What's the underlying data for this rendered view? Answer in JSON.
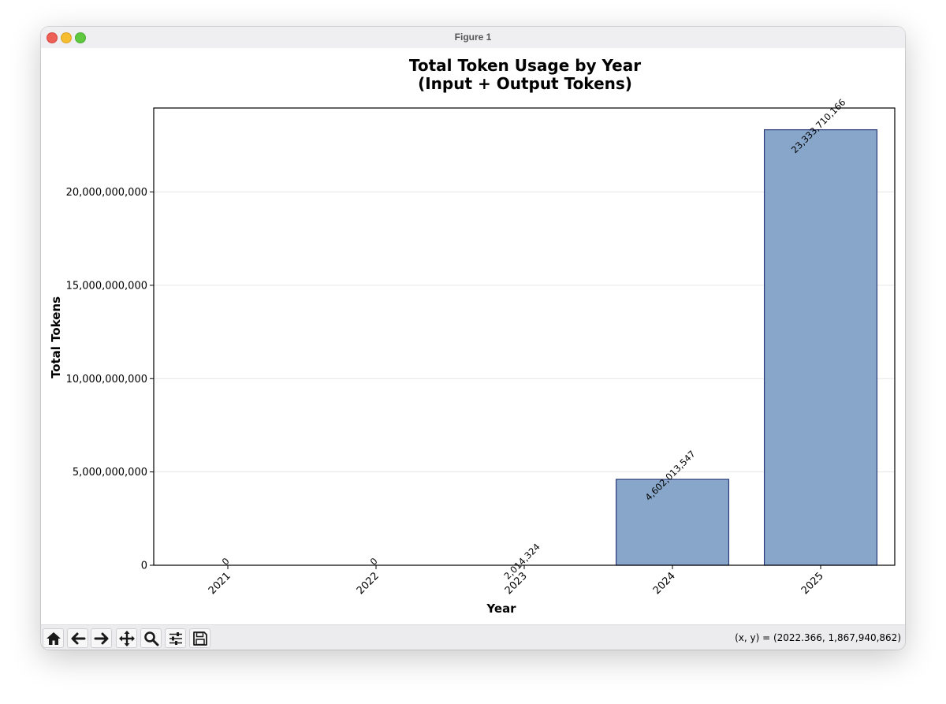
{
  "window": {
    "title": "Figure 1"
  },
  "toolbar": {
    "buttons": [
      {
        "name": "home-button",
        "icon": "home-icon"
      },
      {
        "name": "back-button",
        "icon": "arrow-left-icon"
      },
      {
        "name": "forward-button",
        "icon": "arrow-right-icon"
      },
      {
        "name": "pan-button",
        "icon": "move-icon"
      },
      {
        "name": "zoom-button",
        "icon": "magnifier-icon"
      },
      {
        "name": "configure-subplots-button",
        "icon": "sliders-icon"
      },
      {
        "name": "save-button",
        "icon": "floppy-disk-icon"
      }
    ],
    "coords": "(x, y) = (2022.366, 1,867,940,862)"
  },
  "chart_data": {
    "type": "bar",
    "title": "Total Token Usage by Year\n(Input + Output Tokens)",
    "xlabel": "Year",
    "ylabel": "Total Tokens",
    "categories": [
      "2021",
      "2022",
      "2023",
      "2024",
      "2025"
    ],
    "values": [
      0,
      0,
      2014324,
      4602013547,
      23333710166
    ],
    "value_labels": [
      "0",
      "0",
      "2,014,324",
      "4,602,013,547",
      "23,333,710,166"
    ],
    "ylim": [
      0,
      24500000000
    ],
    "yticks": [
      0,
      5000000000,
      10000000000,
      15000000000,
      20000000000
    ],
    "ytick_labels": [
      "0",
      "5,000,000,000",
      "10,000,000,000",
      "15,000,000,000",
      "20,000,000,000"
    ],
    "grid": "horizontal",
    "colors": {
      "bar_fill": "#87a6c9",
      "bar_edge": "#2b3a7a",
      "grid": "#e6e6e6"
    }
  }
}
